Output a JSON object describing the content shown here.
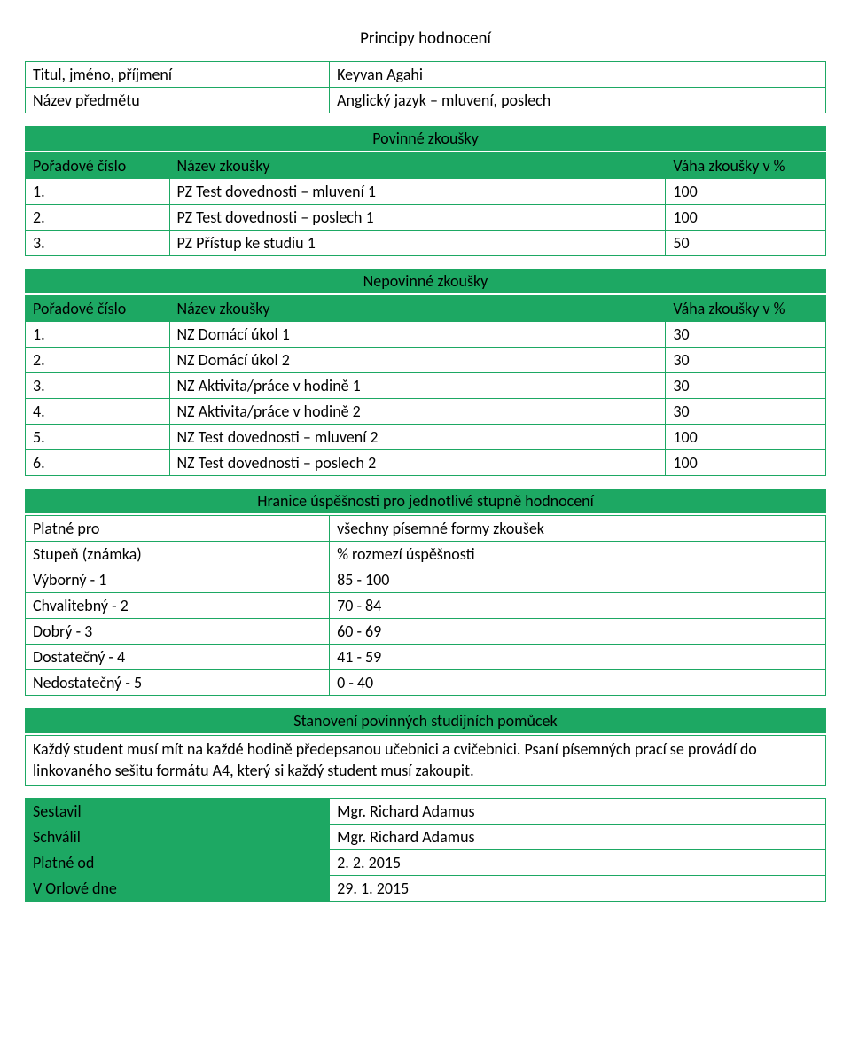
{
  "colors": {
    "green": "#1da863",
    "text": "#000000",
    "background": "#ffffff"
  },
  "typography": {
    "font_family": "Calibri",
    "base_fontsize": 18,
    "title_fontsize": 19
  },
  "title": "Principy hodnocení",
  "info": {
    "rows": [
      {
        "label": "Titul, jméno, příjmení",
        "value": "Keyvan Agahi"
      },
      {
        "label": "Název předmětu",
        "value": "Anglický jazyk – mluvení, poslech"
      }
    ]
  },
  "mandatory": {
    "banner": "Povinné zkoušky",
    "headers": [
      "Pořadové číslo",
      "Název zkoušky",
      "Váha zkoušky v %"
    ],
    "rows": [
      {
        "num": "1.",
        "name": "PZ Test dovednosti – mluvení 1",
        "weight": "100"
      },
      {
        "num": "2.",
        "name": "PZ Test dovednosti – poslech 1",
        "weight": "100"
      },
      {
        "num": "3.",
        "name": "PZ Přístup ke studiu 1",
        "weight": "50"
      }
    ]
  },
  "optional": {
    "banner": "Nepovinné zkoušky",
    "headers": [
      "Pořadové číslo",
      "Název zkoušky",
      "Váha zkoušky v %"
    ],
    "rows": [
      {
        "num": "1.",
        "name": "NZ Domácí úkol 1",
        "weight": "30"
      },
      {
        "num": "2.",
        "name": "NZ Domácí úkol 2",
        "weight": "30"
      },
      {
        "num": "3.",
        "name": "NZ Aktivita/práce v hodině 1",
        "weight": "30"
      },
      {
        "num": "4.",
        "name": "NZ Aktivita/práce v hodině 2",
        "weight": "30"
      },
      {
        "num": "5.",
        "name": "NZ Test dovednosti – mluvení 2",
        "weight": "100"
      },
      {
        "num": "6.",
        "name": "NZ Test dovednosti – poslech 2",
        "weight": "100"
      }
    ]
  },
  "grading": {
    "banner": "Hranice úspěšnosti pro jednotlivé stupně hodnocení",
    "rows": [
      {
        "label": "Platné pro",
        "value": "všechny písemné formy zkoušek"
      },
      {
        "label": "Stupeň (známka)",
        "value": "% rozmezí úspěšnosti"
      },
      {
        "label": "Výborný - 1",
        "value": "85 - 100"
      },
      {
        "label": "Chvalitebný - 2",
        "value": "70 - 84"
      },
      {
        "label": "Dobrý - 3",
        "value": "60 - 69"
      },
      {
        "label": "Dostatečný - 4",
        "value": "41 - 59"
      },
      {
        "label": "Nedostatečný - 5",
        "value": "0 - 40"
      }
    ]
  },
  "supplies": {
    "banner": "Stanovení povinných studijních pomůcek",
    "text": "Každý student musí mít na každé hodině předepsanou učebnici a cvičebnici. Psaní písemných prací se provádí do linkovaného sešitu formátu A4, který si každý student musí zakoupit."
  },
  "footer": {
    "rows": [
      {
        "label": "Sestavil",
        "value": "Mgr. Richard Adamus"
      },
      {
        "label": "Schválil",
        "value": "Mgr. Richard Adamus"
      },
      {
        "label": "Platné od",
        "value": "2. 2. 2015"
      },
      {
        "label": "V Orlové dne",
        "value": "29. 1. 2015"
      }
    ]
  }
}
